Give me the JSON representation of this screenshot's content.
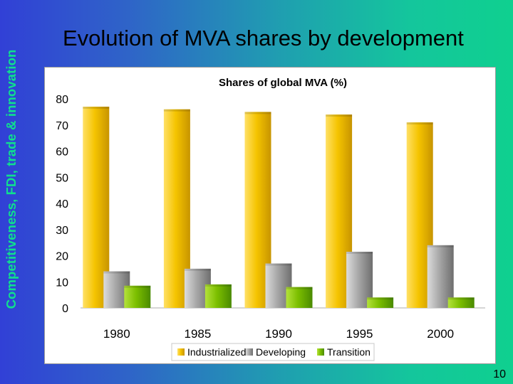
{
  "side_caption": "Competitiveness, FDI, trade & innovation",
  "slide_title": "Evolution of MVA shares by development",
  "page_number": "10",
  "chart_data": {
    "type": "bar",
    "title": "Shares of global MVA (%)",
    "categories": [
      "1980",
      "1985",
      "1990",
      "1995",
      "2000"
    ],
    "series": [
      {
        "name": "Industrialized",
        "values": [
          77,
          76,
          75,
          74,
          71
        ],
        "color": "#f2c200"
      },
      {
        "name": "Developing",
        "values": [
          14,
          15,
          17,
          21.5,
          24
        ],
        "color": "#9c9c9c"
      },
      {
        "name": "Transition",
        "values": [
          8.5,
          9,
          8,
          4,
          4
        ],
        "color": "#7cbf00"
      }
    ],
    "yticks": [
      "0",
      "10",
      "20",
      "30",
      "40",
      "50",
      "60",
      "70",
      "80"
    ],
    "ylim": [
      0,
      80
    ],
    "xlabel": "",
    "ylabel": "",
    "legend_position": "bottom",
    "grid": false
  }
}
